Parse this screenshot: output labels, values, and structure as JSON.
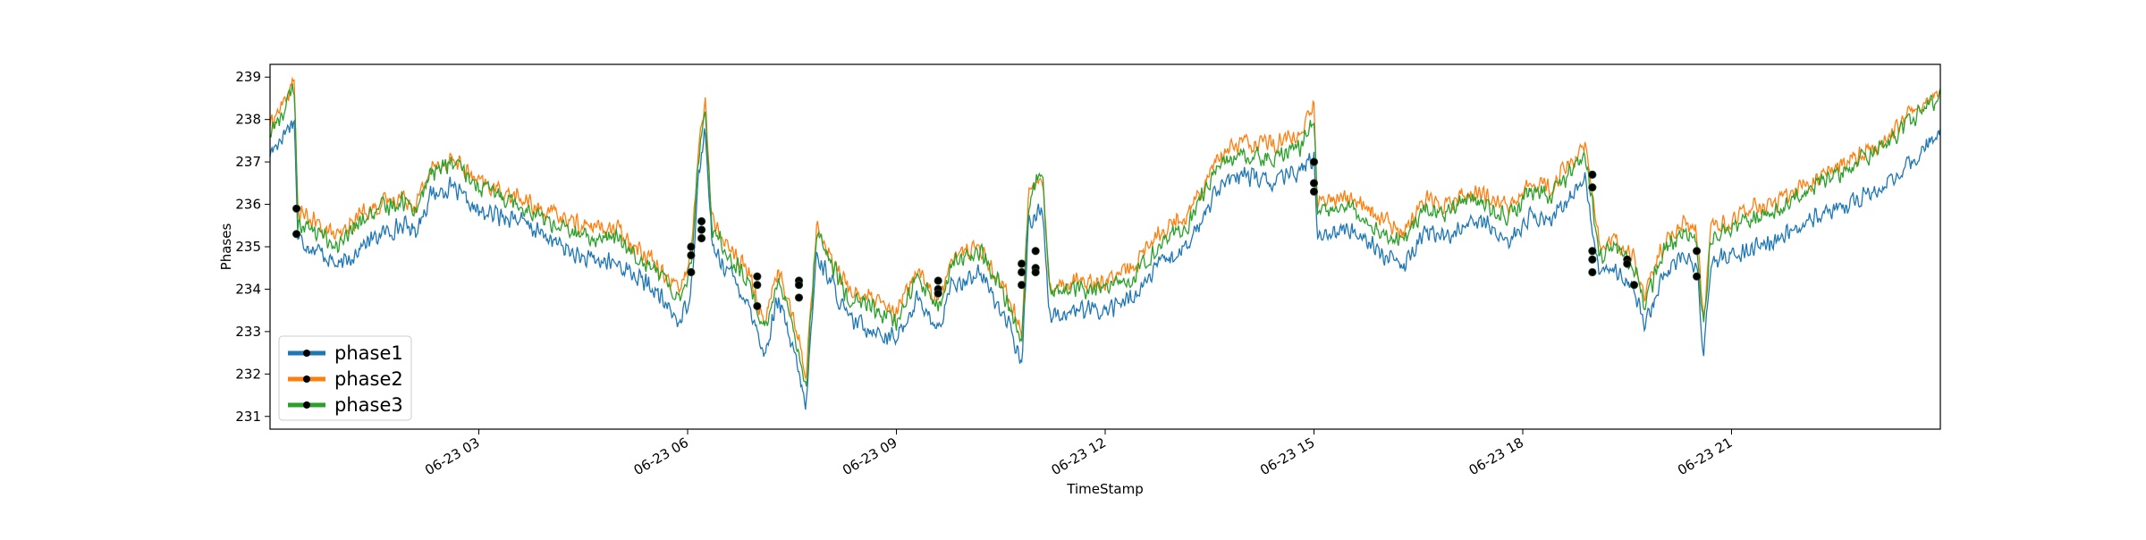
{
  "chart_data": {
    "type": "line",
    "title": "",
    "xlabel": "TimeStamp",
    "ylabel": "Phases",
    "x_range_hours": [
      0,
      24
    ],
    "ylim": [
      230.7,
      239.3
    ],
    "yticks": [
      231,
      232,
      233,
      234,
      235,
      236,
      237,
      238,
      239
    ],
    "xticks": [
      {
        "hour": 3,
        "label": "06-23 03"
      },
      {
        "hour": 6,
        "label": "06-23 06"
      },
      {
        "hour": 9,
        "label": "06-23 09"
      },
      {
        "hour": 12,
        "label": "06-23 12"
      },
      {
        "hour": 15,
        "label": "06-23 15"
      },
      {
        "hour": 18,
        "label": "06-23 18"
      },
      {
        "hour": 21,
        "label": "06-23 21"
      }
    ],
    "grid": false,
    "legend_position": "lower-left",
    "series": [
      {
        "name": "phase1",
        "color": "#1f77b4",
        "points": [
          [
            0.0,
            237.2
          ],
          [
            0.25,
            237.8
          ],
          [
            0.35,
            238.0
          ],
          [
            0.4,
            235.2
          ],
          [
            0.8,
            234.8
          ],
          [
            1.0,
            234.5
          ],
          [
            1.3,
            235.0
          ],
          [
            1.6,
            235.3
          ],
          [
            1.9,
            235.5
          ],
          [
            2.1,
            235.4
          ],
          [
            2.3,
            236.2
          ],
          [
            2.6,
            236.4
          ],
          [
            3.0,
            235.8
          ],
          [
            3.5,
            235.7
          ],
          [
            4.0,
            235.2
          ],
          [
            4.5,
            234.7
          ],
          [
            5.0,
            234.6
          ],
          [
            5.5,
            234.0
          ],
          [
            5.9,
            233.2
          ],
          [
            6.05,
            234.0
          ],
          [
            6.15,
            236.5
          ],
          [
            6.25,
            237.8
          ],
          [
            6.35,
            235.0
          ],
          [
            6.6,
            234.4
          ],
          [
            6.9,
            233.6
          ],
          [
            7.1,
            232.4
          ],
          [
            7.3,
            233.8
          ],
          [
            7.6,
            232.0
          ],
          [
            7.7,
            231.2
          ],
          [
            7.85,
            234.8
          ],
          [
            8.0,
            234.4
          ],
          [
            8.3,
            233.3
          ],
          [
            8.6,
            233.1
          ],
          [
            9.0,
            232.8
          ],
          [
            9.3,
            233.8
          ],
          [
            9.6,
            233.0
          ],
          [
            9.8,
            234.1
          ],
          [
            10.2,
            234.4
          ],
          [
            10.6,
            233.2
          ],
          [
            10.8,
            232.2
          ],
          [
            10.9,
            235.6
          ],
          [
            11.1,
            235.9
          ],
          [
            11.2,
            233.4
          ],
          [
            11.6,
            233.5
          ],
          [
            12.0,
            233.5
          ],
          [
            12.4,
            233.8
          ],
          [
            12.8,
            234.6
          ],
          [
            13.2,
            235.0
          ],
          [
            13.6,
            236.4
          ],
          [
            14.0,
            236.7
          ],
          [
            14.4,
            236.5
          ],
          [
            14.8,
            236.8
          ],
          [
            15.0,
            237.1
          ],
          [
            15.05,
            235.3
          ],
          [
            15.4,
            235.4
          ],
          [
            15.7,
            235.3
          ],
          [
            16.0,
            234.8
          ],
          [
            16.3,
            234.5
          ],
          [
            16.6,
            235.4
          ],
          [
            16.9,
            235.2
          ],
          [
            17.2,
            235.6
          ],
          [
            17.5,
            235.5
          ],
          [
            17.8,
            235.1
          ],
          [
            18.1,
            235.7
          ],
          [
            18.4,
            235.6
          ],
          [
            18.9,
            236.6
          ],
          [
            19.1,
            234.3
          ],
          [
            19.3,
            234.6
          ],
          [
            19.6,
            234.0
          ],
          [
            19.75,
            233.1
          ],
          [
            20.0,
            234.3
          ],
          [
            20.3,
            234.8
          ],
          [
            20.5,
            234.5
          ],
          [
            20.6,
            232.5
          ],
          [
            20.7,
            234.6
          ],
          [
            21.0,
            234.8
          ],
          [
            21.3,
            235.0
          ],
          [
            21.6,
            235.1
          ],
          [
            22.0,
            235.5
          ],
          [
            22.4,
            235.8
          ],
          [
            22.8,
            236.1
          ],
          [
            23.2,
            236.4
          ],
          [
            23.6,
            237.0
          ],
          [
            24.0,
            237.7
          ]
        ]
      },
      {
        "name": "phase2",
        "color": "#ff7f0e",
        "points": [
          [
            0.0,
            237.9
          ],
          [
            0.2,
            238.4
          ],
          [
            0.35,
            238.9
          ],
          [
            0.4,
            235.8
          ],
          [
            0.8,
            235.4
          ],
          [
            1.0,
            235.2
          ],
          [
            1.3,
            235.8
          ],
          [
            1.6,
            236.0
          ],
          [
            1.9,
            236.2
          ],
          [
            2.1,
            236.0
          ],
          [
            2.3,
            236.8
          ],
          [
            2.6,
            237.1
          ],
          [
            3.0,
            236.5
          ],
          [
            3.5,
            236.2
          ],
          [
            4.0,
            235.8
          ],
          [
            4.5,
            235.5
          ],
          [
            5.0,
            235.4
          ],
          [
            5.5,
            234.7
          ],
          [
            5.9,
            234.0
          ],
          [
            6.05,
            234.8
          ],
          [
            6.15,
            237.2
          ],
          [
            6.25,
            238.5
          ],
          [
            6.35,
            235.6
          ],
          [
            6.6,
            235.0
          ],
          [
            6.9,
            234.3
          ],
          [
            7.1,
            233.2
          ],
          [
            7.3,
            234.5
          ],
          [
            7.6,
            232.8
          ],
          [
            7.7,
            231.8
          ],
          [
            7.85,
            235.5
          ],
          [
            8.0,
            235.0
          ],
          [
            8.3,
            234.0
          ],
          [
            8.6,
            233.8
          ],
          [
            9.0,
            233.4
          ],
          [
            9.3,
            234.5
          ],
          [
            9.6,
            233.7
          ],
          [
            9.8,
            234.8
          ],
          [
            10.2,
            235.0
          ],
          [
            10.6,
            233.9
          ],
          [
            10.8,
            232.9
          ],
          [
            10.9,
            236.3
          ],
          [
            11.1,
            236.6
          ],
          [
            11.2,
            234.1
          ],
          [
            11.6,
            234.2
          ],
          [
            12.0,
            234.2
          ],
          [
            12.4,
            234.5
          ],
          [
            12.8,
            235.4
          ],
          [
            13.2,
            235.8
          ],
          [
            13.6,
            237.1
          ],
          [
            14.0,
            237.5
          ],
          [
            14.4,
            237.4
          ],
          [
            14.8,
            237.6
          ],
          [
            15.0,
            238.4
          ],
          [
            15.05,
            236.0
          ],
          [
            15.4,
            236.2
          ],
          [
            15.7,
            236.0
          ],
          [
            16.0,
            235.6
          ],
          [
            16.3,
            235.3
          ],
          [
            16.6,
            236.2
          ],
          [
            16.9,
            236.0
          ],
          [
            17.2,
            236.3
          ],
          [
            17.5,
            236.2
          ],
          [
            17.8,
            235.9
          ],
          [
            18.1,
            236.5
          ],
          [
            18.4,
            236.4
          ],
          [
            18.9,
            237.4
          ],
          [
            19.1,
            235.0
          ],
          [
            19.3,
            235.2
          ],
          [
            19.6,
            234.7
          ],
          [
            19.75,
            233.8
          ],
          [
            20.0,
            235.0
          ],
          [
            20.3,
            235.6
          ],
          [
            20.5,
            235.3
          ],
          [
            20.6,
            233.2
          ],
          [
            20.7,
            235.4
          ],
          [
            21.0,
            235.6
          ],
          [
            21.3,
            235.9
          ],
          [
            21.6,
            236.0
          ],
          [
            22.0,
            236.4
          ],
          [
            22.4,
            236.8
          ],
          [
            22.8,
            237.1
          ],
          [
            23.2,
            237.5
          ],
          [
            23.6,
            238.2
          ],
          [
            24.0,
            238.6
          ]
        ]
      },
      {
        "name": "phase3",
        "color": "#2ca02c",
        "points": [
          [
            0.0,
            237.7
          ],
          [
            0.2,
            238.2
          ],
          [
            0.35,
            238.8
          ],
          [
            0.4,
            235.6
          ],
          [
            0.8,
            235.2
          ],
          [
            1.0,
            235.0
          ],
          [
            1.3,
            235.6
          ],
          [
            1.6,
            235.9
          ],
          [
            1.9,
            236.1
          ],
          [
            2.1,
            235.9
          ],
          [
            2.3,
            236.7
          ],
          [
            2.6,
            237.0
          ],
          [
            3.0,
            236.4
          ],
          [
            3.5,
            236.1
          ],
          [
            4.0,
            235.6
          ],
          [
            4.5,
            235.2
          ],
          [
            5.0,
            235.2
          ],
          [
            5.5,
            234.5
          ],
          [
            5.9,
            233.8
          ],
          [
            6.05,
            234.6
          ],
          [
            6.15,
            237.0
          ],
          [
            6.25,
            238.3
          ],
          [
            6.35,
            235.4
          ],
          [
            6.6,
            234.8
          ],
          [
            6.9,
            234.1
          ],
          [
            7.1,
            233.0
          ],
          [
            7.3,
            234.3
          ],
          [
            7.6,
            232.6
          ],
          [
            7.7,
            231.6
          ],
          [
            7.85,
            235.3
          ],
          [
            8.0,
            234.8
          ],
          [
            8.3,
            233.8
          ],
          [
            8.6,
            233.6
          ],
          [
            9.0,
            233.2
          ],
          [
            9.3,
            234.3
          ],
          [
            9.6,
            233.5
          ],
          [
            9.8,
            234.6
          ],
          [
            10.2,
            234.9
          ],
          [
            10.6,
            233.7
          ],
          [
            10.8,
            232.7
          ],
          [
            10.9,
            236.1
          ],
          [
            11.1,
            236.8
          ],
          [
            11.2,
            233.9
          ],
          [
            11.6,
            234.0
          ],
          [
            12.0,
            234.0
          ],
          [
            12.4,
            234.3
          ],
          [
            12.8,
            235.1
          ],
          [
            13.2,
            235.5
          ],
          [
            13.6,
            236.9
          ],
          [
            14.0,
            237.2
          ],
          [
            14.4,
            237.1
          ],
          [
            14.8,
            237.3
          ],
          [
            15.0,
            238.0
          ],
          [
            15.05,
            235.8
          ],
          [
            15.4,
            236.0
          ],
          [
            15.7,
            235.8
          ],
          [
            16.0,
            235.3
          ],
          [
            16.3,
            235.1
          ],
          [
            16.6,
            236.0
          ],
          [
            16.9,
            235.8
          ],
          [
            17.2,
            236.2
          ],
          [
            17.5,
            236.0
          ],
          [
            17.8,
            235.7
          ],
          [
            18.1,
            236.3
          ],
          [
            18.4,
            236.2
          ],
          [
            18.9,
            237.2
          ],
          [
            19.1,
            234.8
          ],
          [
            19.3,
            235.0
          ],
          [
            19.6,
            234.5
          ],
          [
            19.75,
            233.6
          ],
          [
            20.0,
            234.8
          ],
          [
            20.3,
            235.4
          ],
          [
            20.5,
            235.1
          ],
          [
            20.6,
            233.0
          ],
          [
            20.7,
            235.2
          ],
          [
            21.0,
            235.4
          ],
          [
            21.3,
            235.7
          ],
          [
            21.6,
            235.8
          ],
          [
            22.0,
            236.2
          ],
          [
            22.4,
            236.6
          ],
          [
            22.8,
            237.0
          ],
          [
            23.2,
            237.4
          ],
          [
            23.6,
            238.0
          ],
          [
            24.0,
            238.5
          ]
        ]
      }
    ],
    "markers": {
      "color": "#000000",
      "points": [
        [
          0.38,
          235.9
        ],
        [
          0.38,
          235.3
        ],
        [
          6.05,
          235.0
        ],
        [
          6.05,
          234.8
        ],
        [
          6.05,
          234.4
        ],
        [
          6.2,
          235.6
        ],
        [
          6.2,
          235.4
        ],
        [
          6.2,
          235.2
        ],
        [
          7.0,
          234.3
        ],
        [
          7.0,
          234.1
        ],
        [
          7.0,
          233.6
        ],
        [
          7.6,
          234.2
        ],
        [
          7.6,
          234.1
        ],
        [
          7.6,
          233.8
        ],
        [
          9.6,
          234.2
        ],
        [
          9.6,
          234.0
        ],
        [
          9.6,
          233.9
        ],
        [
          10.8,
          234.6
        ],
        [
          10.8,
          234.4
        ],
        [
          10.8,
          234.1
        ],
        [
          11.0,
          234.9
        ],
        [
          11.0,
          234.5
        ],
        [
          11.0,
          234.4
        ],
        [
          15.0,
          237.0
        ],
        [
          15.0,
          236.5
        ],
        [
          15.0,
          236.3
        ],
        [
          19.0,
          236.7
        ],
        [
          19.0,
          236.4
        ],
        [
          19.0,
          234.9
        ],
        [
          19.0,
          234.7
        ],
        [
          19.0,
          234.4
        ],
        [
          19.5,
          234.7
        ],
        [
          19.5,
          234.6
        ],
        [
          19.6,
          234.1
        ],
        [
          20.5,
          234.9
        ],
        [
          20.5,
          234.3
        ]
      ]
    }
  }
}
